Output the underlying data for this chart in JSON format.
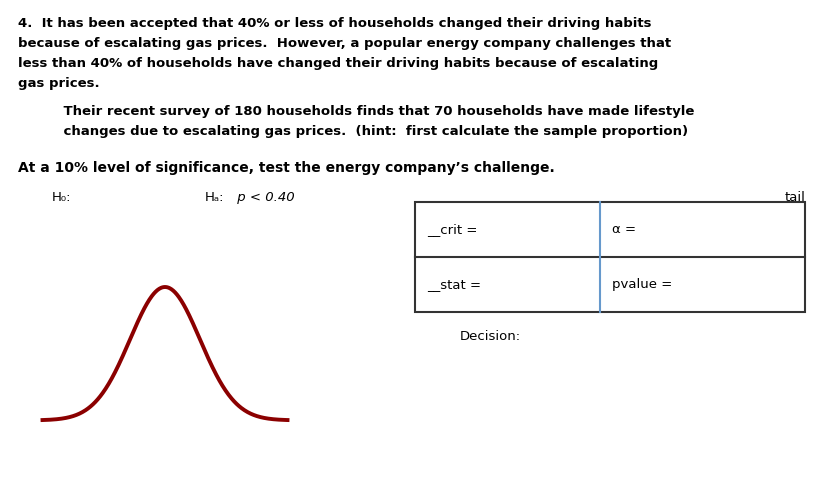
{
  "title_line1": "4.  It has been accepted that 40% or less of households changed their driving habits",
  "title_line2": "because of escalating gas prices.  However, a popular energy company challenges that",
  "title_line3": "less than 40% of households have changed their driving habits because of escalating",
  "title_line4": "gas prices.",
  "indent_line1": "    Their recent survey of 180 households finds that 70 households have made lifestyle",
  "indent_line2": "    changes due to escalating gas prices.  (hint:  first calculate the sample proportion)",
  "significance_line": "At a 10% level of significance, test the energy company’s challenge.",
  "h0_label": "H₀:",
  "ha_label": "Hₐ:",
  "ha_text": " p < 0.40",
  "tail_label": "tail",
  "crit_label": "__crit =",
  "alpha_label": "α =",
  "stat_label": "__stat =",
  "pvalue_label": "pvalue =",
  "decision_label": "Decision:",
  "curve_color": "#8B0000",
  "bg_color": "#ffffff",
  "text_color": "#000000",
  "table_border_color": "#333333",
  "table_divider_color": "#6699CC",
  "figsize": [
    8.33,
    4.87
  ],
  "dpi": 100
}
